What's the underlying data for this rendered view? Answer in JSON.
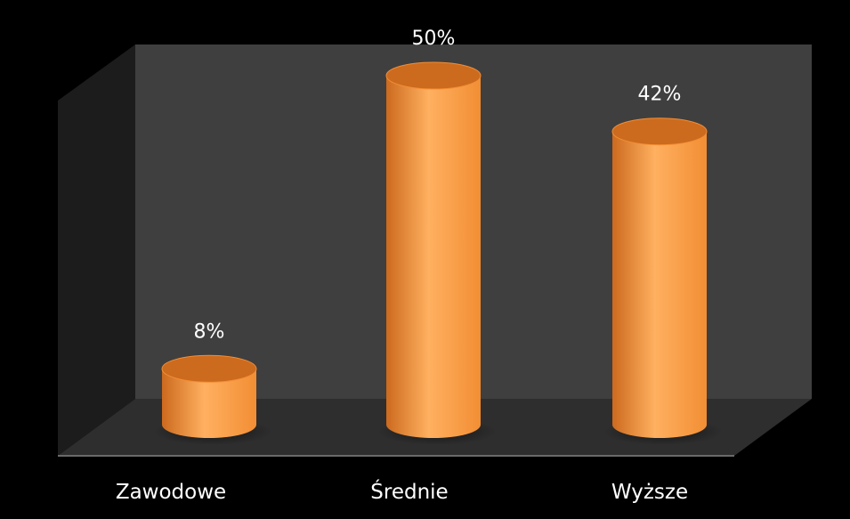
{
  "chart_data": {
    "type": "bar",
    "style": "3d-cylinder",
    "categories": [
      "Zawodowe",
      "Średnie",
      "Wyższe"
    ],
    "values": [
      8,
      50,
      42
    ],
    "data_labels": [
      "8%",
      "50%",
      "42%"
    ],
    "unit": "%",
    "title": "",
    "xlabel": "",
    "ylabel": "",
    "ylim": [
      0,
      50
    ],
    "grid": false,
    "legend": "none",
    "colors": {
      "background": "#000000",
      "back_wall": "#3f3f3f",
      "side_wall": "#1c1c1c",
      "floor": "#2e2e2e",
      "bar": "#f28e34",
      "bar_light": "#ffb060",
      "bar_dark": "#cc6a1e",
      "text": "#ffffff"
    }
  }
}
